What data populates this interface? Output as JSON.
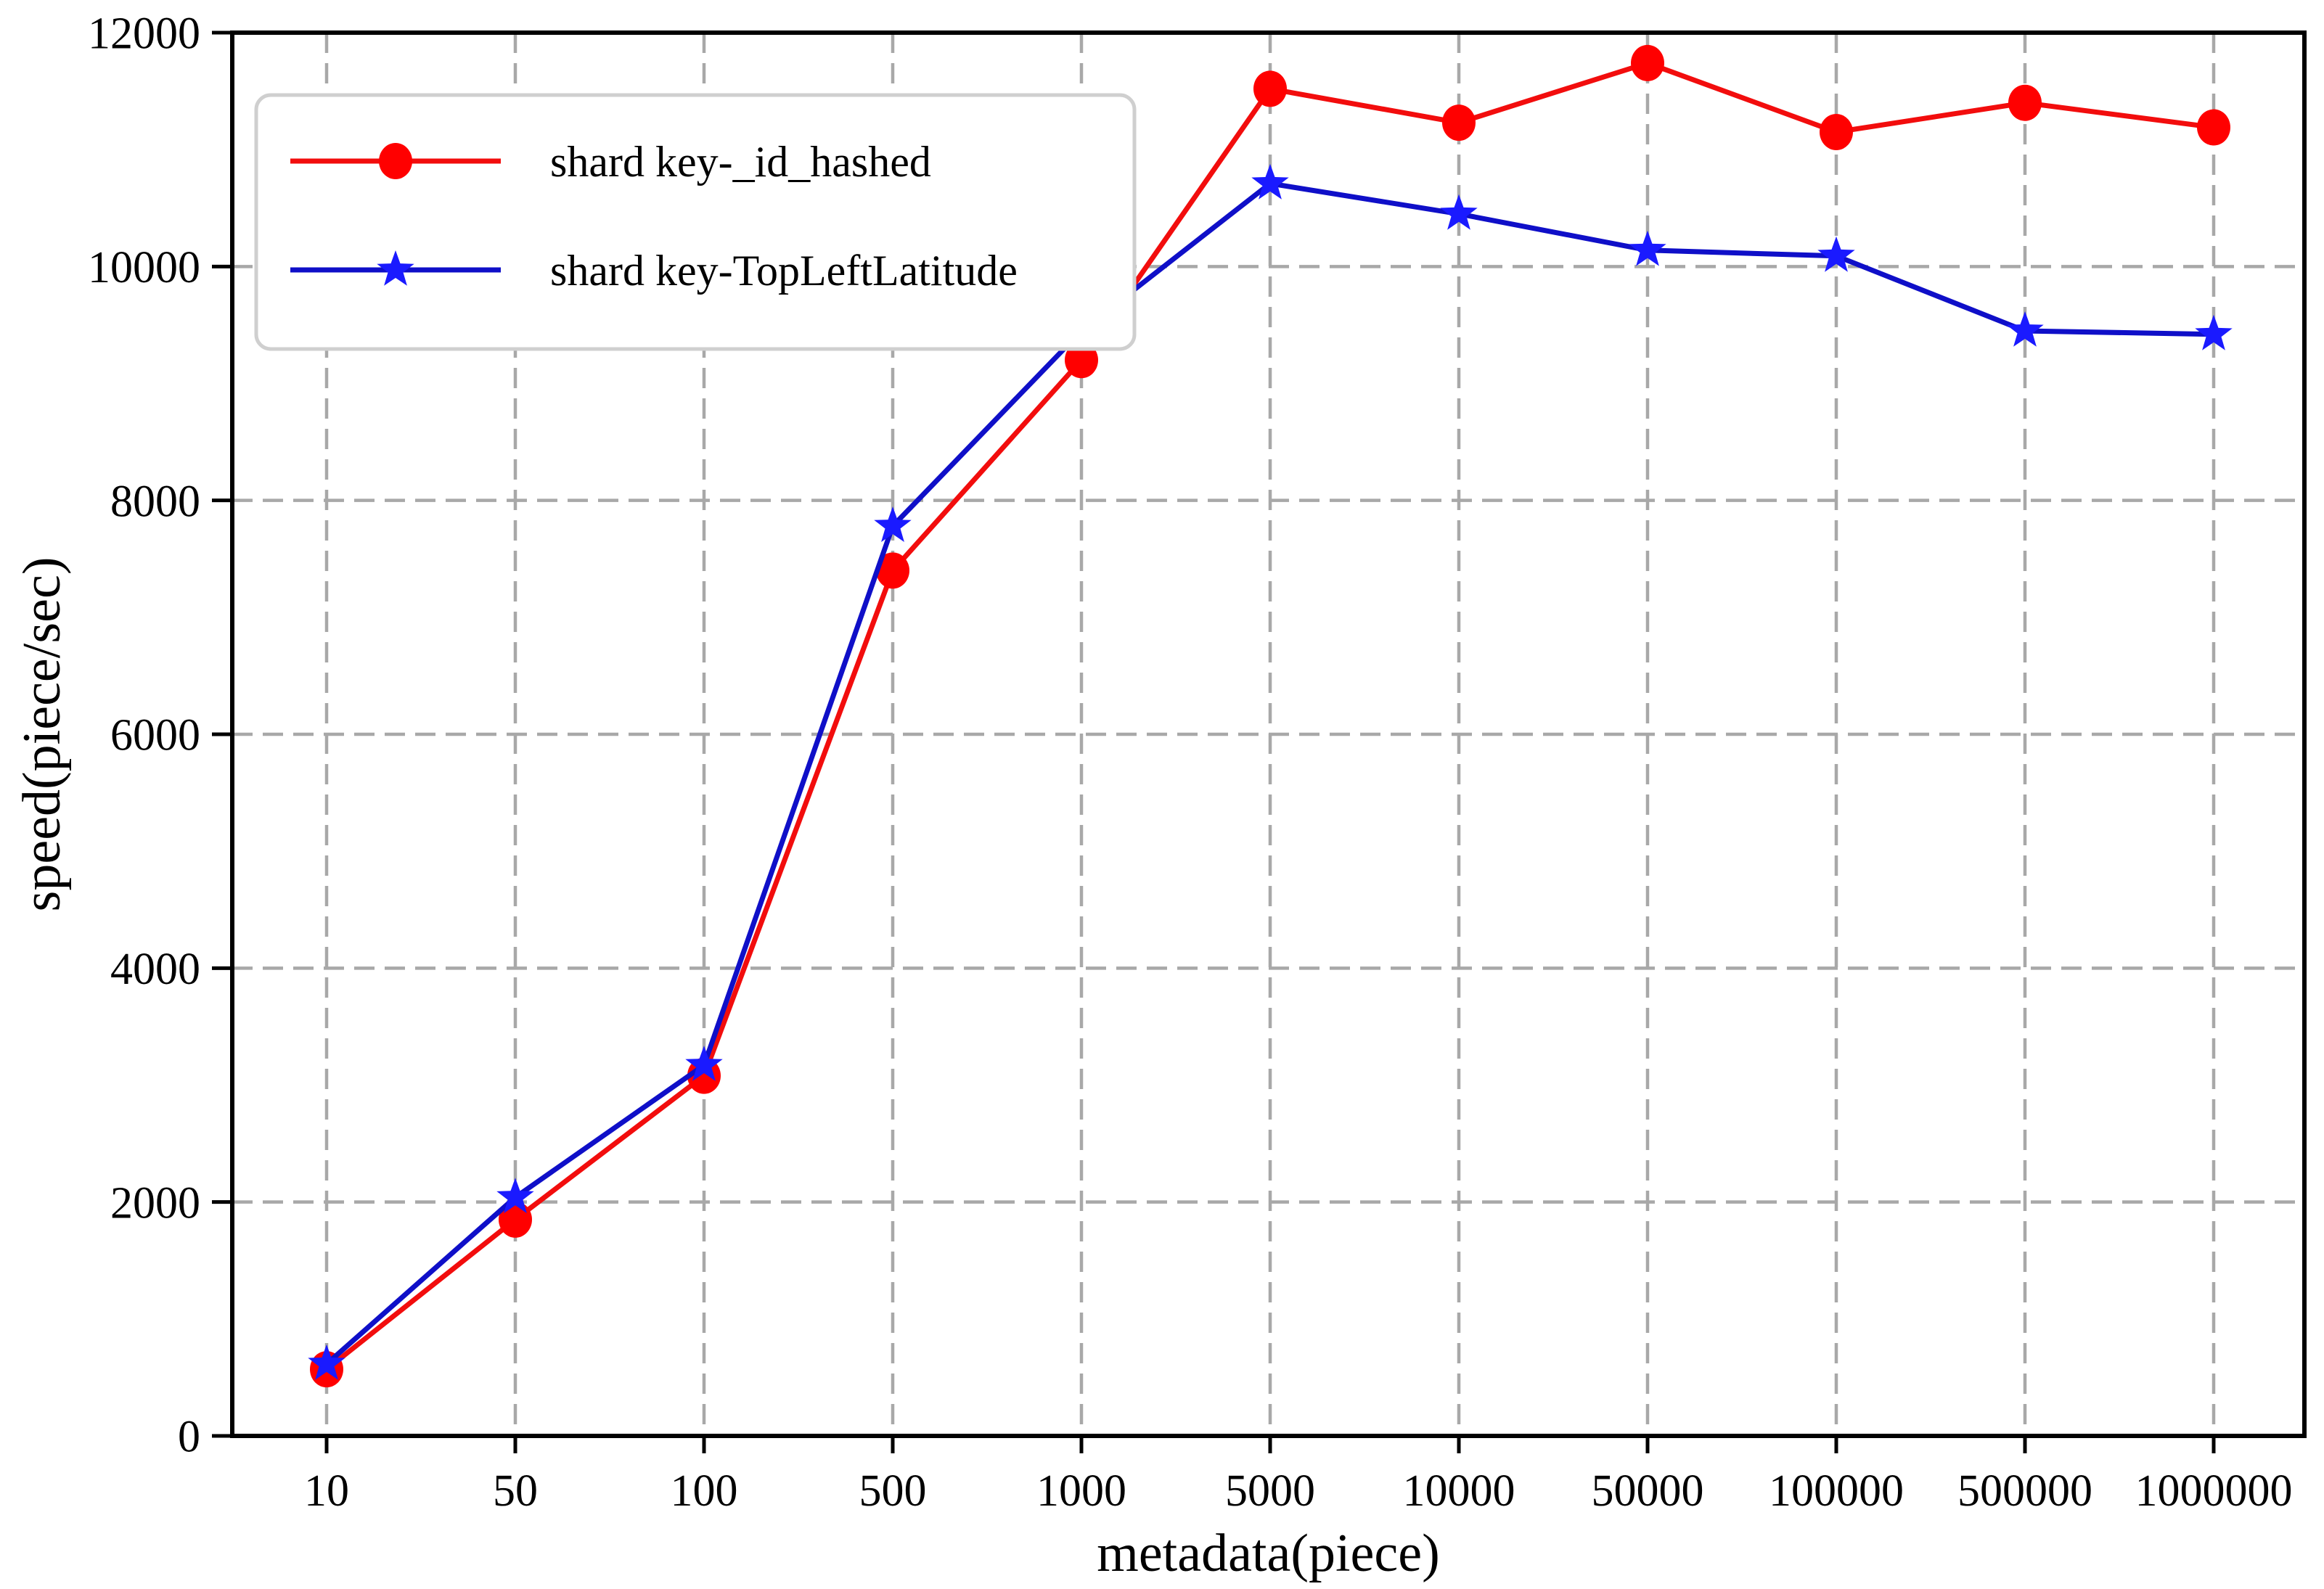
{
  "chart_data": {
    "type": "line",
    "title": "",
    "xlabel": "metadata(piece)",
    "ylabel": "speed(piece/sec)",
    "x_categories": [
      "10",
      "50",
      "100",
      "500",
      "1000",
      "5000",
      "10000",
      "50000",
      "100000",
      "500000",
      "1000000"
    ],
    "yticks": [
      "0",
      "2000",
      "4000",
      "6000",
      "8000",
      "10000",
      "12000"
    ],
    "ylim": [
      0,
      12000
    ],
    "grid": true,
    "grid_style": "dashed",
    "grid_color": "#a8a8a8",
    "legend_position": "upper left",
    "series": [
      {
        "name": "shard key-_id_hashed",
        "marker": "circle",
        "line_color": "#f20d0d",
        "marker_color": "#ff0000",
        "values": [
          570,
          1850,
          3080,
          7400,
          9200,
          11520,
          11230,
          11740,
          11150,
          11400,
          11190
        ]
      },
      {
        "name": "shard key-TopLeftLatitude",
        "marker": "star",
        "line_color": "#0f0fc8",
        "marker_color": "#1a1aff",
        "values": [
          615,
          2040,
          3170,
          7780,
          9450,
          10710,
          10450,
          10140,
          10090,
          9450,
          9420
        ]
      }
    ]
  }
}
